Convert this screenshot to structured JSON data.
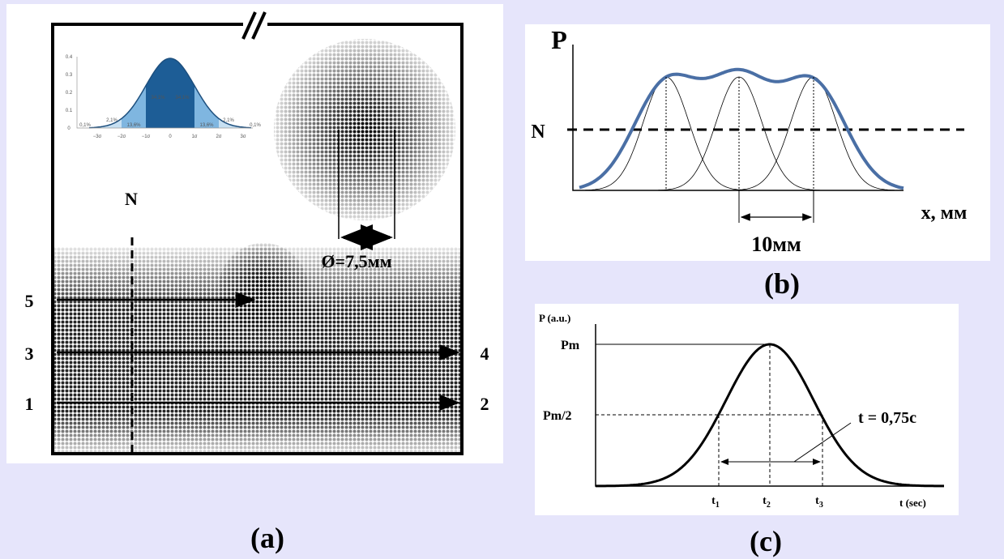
{
  "panel_a": {
    "caption": "(a)",
    "normal_level": "N",
    "diameter": "Ø=7,5мм",
    "pass_labels": {
      "start_5": "5",
      "start_3": "3",
      "end_4": "4",
      "start_1": "1",
      "end_2": "2"
    },
    "inset": {
      "y_ticks": [
        "0",
        "0.1",
        "0.2",
        "0.3",
        "0.4"
      ],
      "x_ticks": [
        "−3σ",
        "−2σ",
        "−1σ",
        "0",
        "1σ",
        "2σ",
        "3σ"
      ],
      "percentages": [
        "0,1%",
        "2,1%",
        "13,6%",
        "34,1%",
        "34,1%",
        "13,6%",
        "2,1%",
        "0,1%"
      ]
    }
  },
  "panel_b": {
    "caption": "(b)",
    "y_label": "P",
    "normal_level": "N",
    "x_label": "x, мм",
    "spacing": "10мм"
  },
  "panel_c": {
    "caption": "(c)",
    "y_label": "P (a.u.)",
    "peak": "Pm",
    "half_peak": "Pm/2",
    "duration": "t = 0,75c",
    "t_marks": [
      {
        "base": "t",
        "sub": "1"
      },
      {
        "base": "t",
        "sub": "2"
      },
      {
        "base": "t",
        "sub": "3"
      }
    ],
    "x_label": "t (sec)"
  }
}
